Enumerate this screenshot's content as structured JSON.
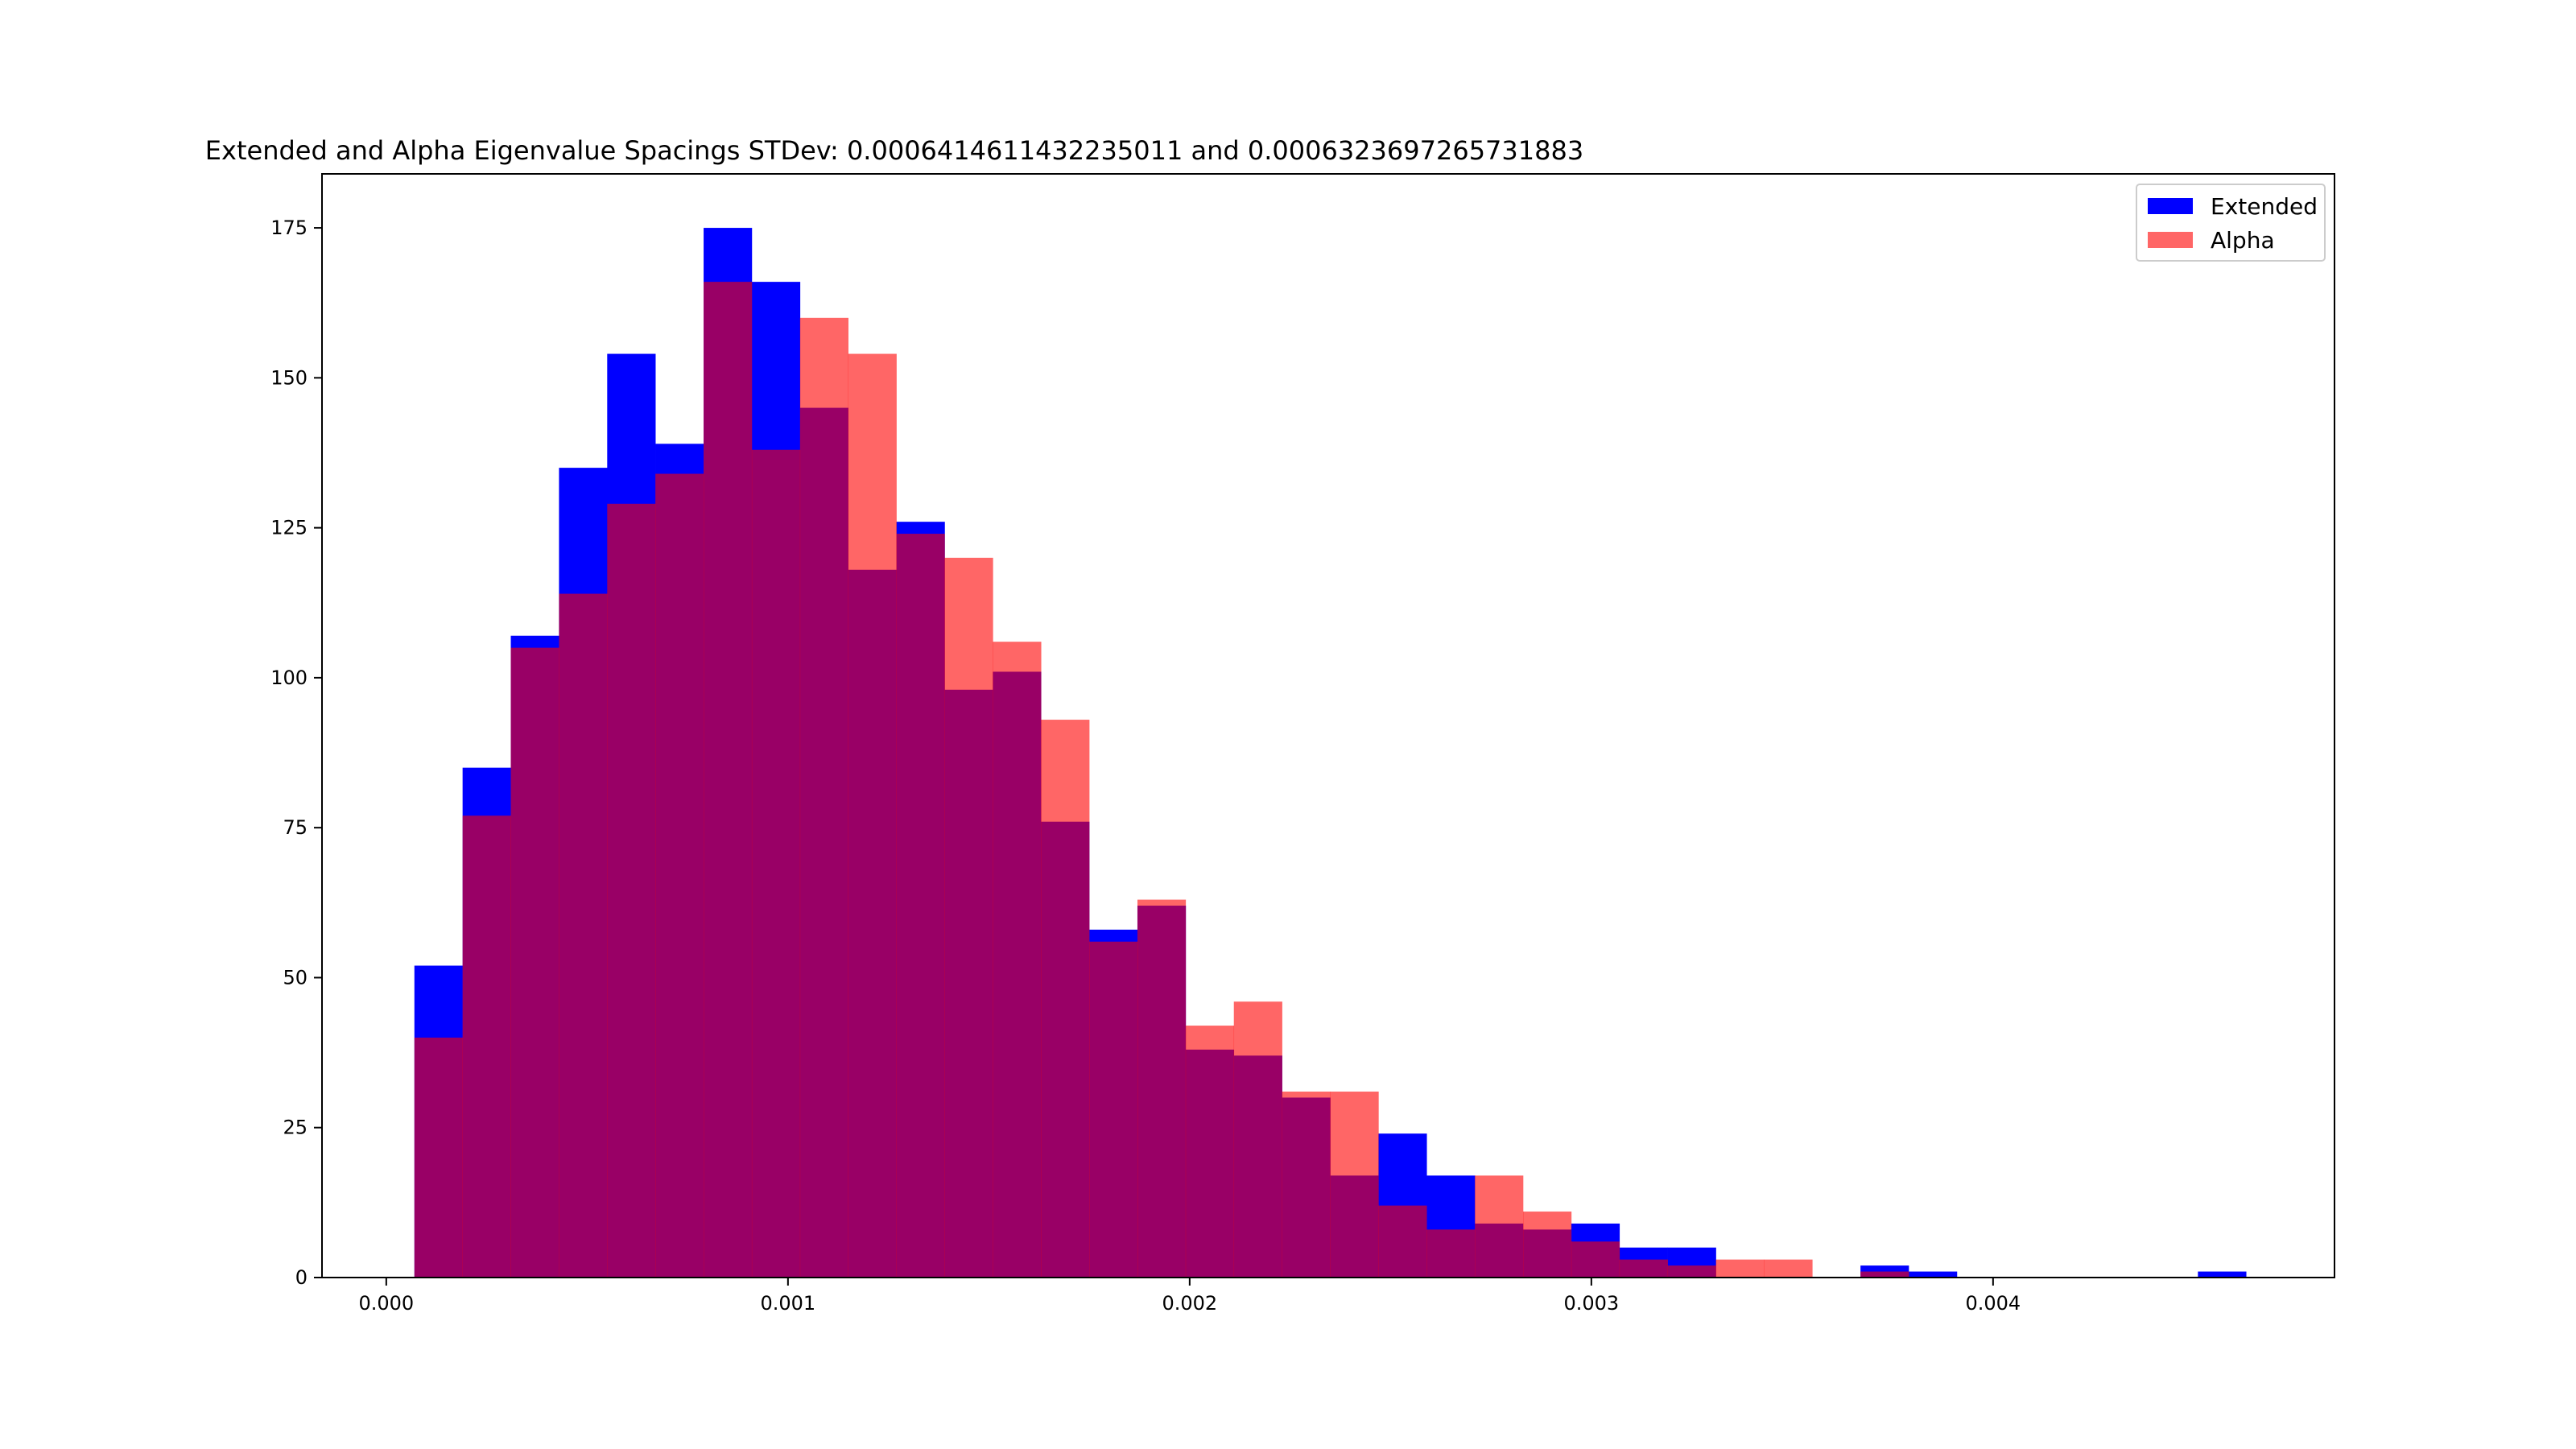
{
  "chart_data": {
    "type": "bar",
    "subtype": "overlaid-histogram",
    "title": "Extended and Alpha Eigenvalue Spacings STDev: 0.0006414611432235011 and 0.0006323697265731883",
    "xlabel": "",
    "ylabel": "",
    "xlim": [
      -0.00016,
      0.00485
    ],
    "ylim": [
      0,
      184
    ],
    "grid": false,
    "legend_position": "top-right",
    "x_ticks": [
      {
        "value": 0.0,
        "label": "0.000"
      },
      {
        "value": 0.001,
        "label": "0.001"
      },
      {
        "value": 0.002,
        "label": "0.002"
      },
      {
        "value": 0.003,
        "label": "0.003"
      },
      {
        "value": 0.004,
        "label": "0.004"
      }
    ],
    "y_ticks": [
      {
        "value": 0,
        "label": "0"
      },
      {
        "value": 25,
        "label": "25"
      },
      {
        "value": 50,
        "label": "50"
      },
      {
        "value": 75,
        "label": "75"
      },
      {
        "value": 100,
        "label": "100"
      },
      {
        "value": 125,
        "label": "125"
      },
      {
        "value": 150,
        "label": "150"
      },
      {
        "value": 175,
        "label": "175"
      }
    ],
    "bin_edges": [
      7e-05,
      0.00019,
      0.00031,
      0.00043,
      0.00055,
      0.00067,
      0.00079,
      0.00091,
      0.00103,
      0.00115,
      0.00127,
      0.00139,
      0.00151,
      0.00163,
      0.00175,
      0.00187,
      0.00199,
      0.00211,
      0.00223,
      0.00235,
      0.00247,
      0.00259,
      0.00271,
      0.00283,
      0.00295,
      0.00307,
      0.00319,
      0.00331,
      0.00343,
      0.00355,
      0.00367,
      0.00379,
      0.00391,
      0.00403,
      0.00415,
      0.00427,
      0.00439,
      0.00451,
      0.00463
    ],
    "series": [
      {
        "name": "Extended",
        "color": "#0000ff",
        "opacity": 1.0,
        "values": [
          52,
          85,
          107,
          135,
          154,
          139,
          175,
          166,
          145,
          118,
          126,
          98,
          101,
          76,
          58,
          62,
          38,
          37,
          30,
          17,
          24,
          17,
          9,
          8,
          9,
          5,
          5,
          0,
          0,
          0,
          2,
          1,
          0,
          0,
          0,
          0,
          0,
          1
        ]
      },
      {
        "name": "Alpha",
        "color": "#ff0000",
        "opacity": 0.6,
        "values": [
          40,
          77,
          105,
          114,
          129,
          134,
          166,
          138,
          160,
          154,
          124,
          120,
          106,
          93,
          56,
          63,
          42,
          46,
          31,
          31,
          12,
          8,
          17,
          11,
          6,
          3,
          2,
          3,
          3,
          0,
          1,
          0,
          0,
          0,
          0,
          0,
          0,
          0
        ]
      }
    ]
  }
}
